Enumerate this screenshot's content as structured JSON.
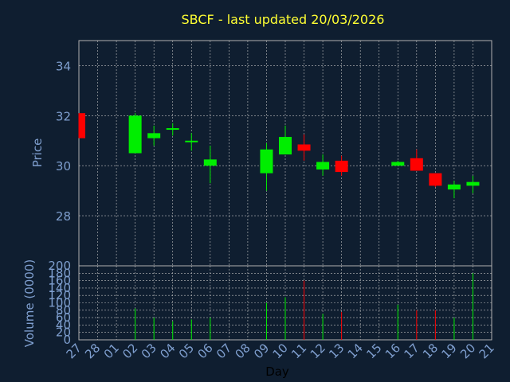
{
  "chart_data": {
    "type": "candlestick",
    "title": "SBCF - last updated 20/03/2026",
    "xlabel": "Day",
    "price_ylabel": "Price",
    "volume_ylabel": "Volume (0000)",
    "x_ticks": [
      "27",
      "28",
      "01",
      "02",
      "03",
      "04",
      "05",
      "06",
      "07",
      "08",
      "09",
      "10",
      "11",
      "12",
      "13",
      "14",
      "15",
      "16",
      "17",
      "18",
      "19",
      "20",
      "21"
    ],
    "price_ylim": [
      26.0,
      35.0
    ],
    "price_yticks": [
      28,
      30,
      32,
      34
    ],
    "volume_ylim": [
      0,
      200
    ],
    "volume_yticks": [
      0,
      20,
      40,
      60,
      80,
      100,
      120,
      140,
      160,
      180,
      200
    ],
    "grid": true,
    "colors": {
      "up": "#00ee00",
      "down": "#ff0000",
      "background": "#0f1e30",
      "text": "#7f9fcf",
      "title": "#ffff33",
      "grid": "#c0c0c0"
    },
    "candles": [
      {
        "day": "27",
        "open": 32.1,
        "high": 32.1,
        "low": 31.1,
        "close": 31.1,
        "volume": 0
      },
      {
        "day": "02",
        "open": 30.5,
        "high": 32.1,
        "low": 30.5,
        "close": 32.0,
        "volume": 85
      },
      {
        "day": "03",
        "open": 31.1,
        "high": 31.6,
        "low": 30.8,
        "close": 31.3,
        "volume": 60
      },
      {
        "day": "04",
        "open": 31.45,
        "high": 31.7,
        "low": 31.2,
        "close": 31.5,
        "volume": 50
      },
      {
        "day": "05",
        "open": 30.95,
        "high": 31.3,
        "low": 30.6,
        "close": 31.0,
        "volume": 55
      },
      {
        "day": "06",
        "open": 30.0,
        "high": 30.8,
        "low": 29.3,
        "close": 30.25,
        "volume": 60
      },
      {
        "day": "09",
        "open": 29.7,
        "high": 30.9,
        "low": 29.0,
        "close": 30.65,
        "volume": 100
      },
      {
        "day": "10",
        "open": 30.45,
        "high": 31.6,
        "low": 30.45,
        "close": 31.15,
        "volume": 115
      },
      {
        "day": "11",
        "open": 30.85,
        "high": 31.25,
        "low": 30.2,
        "close": 30.6,
        "volume": 160
      },
      {
        "day": "12",
        "open": 29.85,
        "high": 30.45,
        "low": 29.6,
        "close": 30.15,
        "volume": 70
      },
      {
        "day": "13",
        "open": 30.2,
        "high": 30.4,
        "low": 29.6,
        "close": 29.75,
        "volume": 75
      },
      {
        "day": "16",
        "open": 30.0,
        "high": 30.2,
        "low": 30.0,
        "close": 30.15,
        "volume": 95
      },
      {
        "day": "17",
        "open": 30.3,
        "high": 30.65,
        "low": 29.8,
        "close": 29.8,
        "volume": 80
      },
      {
        "day": "18",
        "open": 29.7,
        "high": 29.7,
        "low": 29.15,
        "close": 29.2,
        "volume": 80
      },
      {
        "day": "19",
        "open": 29.05,
        "high": 29.4,
        "low": 28.7,
        "close": 29.25,
        "volume": 60
      },
      {
        "day": "20",
        "open": 29.2,
        "high": 29.6,
        "low": 28.9,
        "close": 29.35,
        "volume": 180
      }
    ]
  }
}
